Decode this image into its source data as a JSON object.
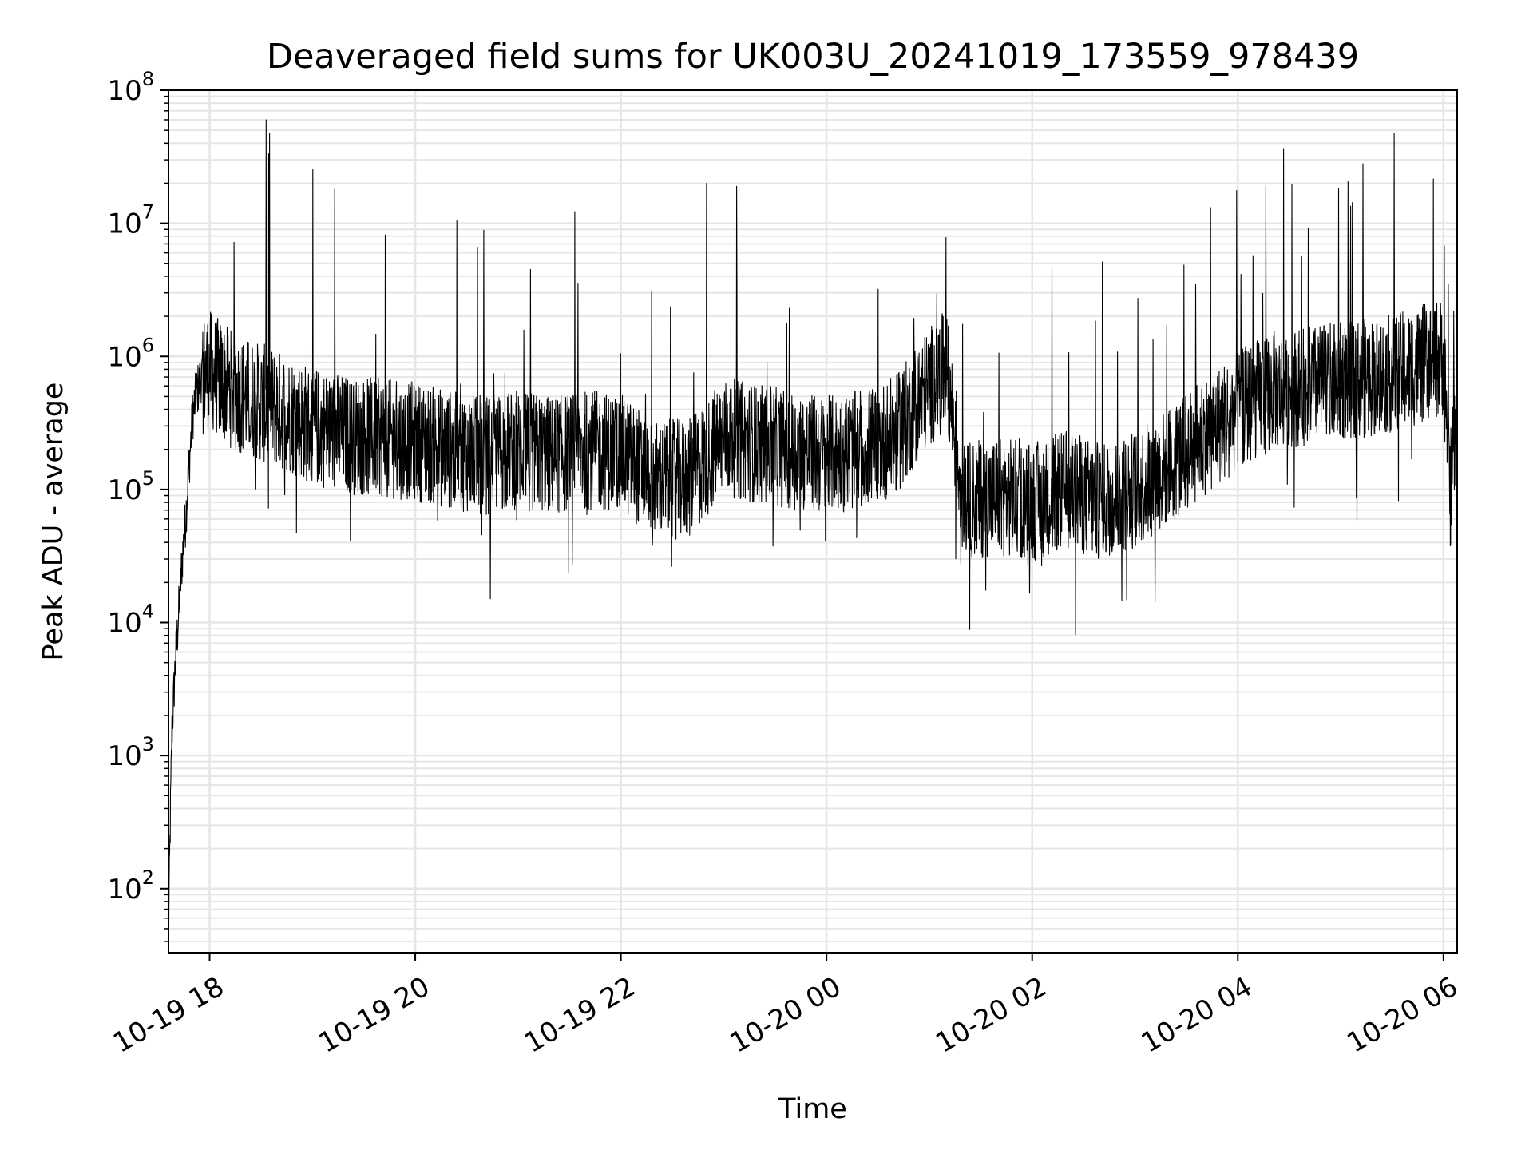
{
  "chart_data": {
    "type": "line",
    "title": "Deaveraged field sums for UK003U_20241019_173559_978439",
    "xlabel": "Time",
    "ylabel": "Peak ADU - average",
    "y_scale": "log",
    "ylim": [
      33,
      100000000
    ],
    "xlim": [
      "2024-10-19T17:36:00",
      "2024-10-20T06:08:00"
    ],
    "grid": true,
    "grid_minor": true,
    "line_color": "#000000",
    "grid_color": "#e6e6e6",
    "x_ticks": [
      {
        "value": "2024-10-19T18:00:00",
        "label": "10-19 18"
      },
      {
        "value": "2024-10-19T20:00:00",
        "label": "10-19 20"
      },
      {
        "value": "2024-10-19T22:00:00",
        "label": "10-19 22"
      },
      {
        "value": "2024-10-20T00:00:00",
        "label": "10-20 00"
      },
      {
        "value": "2024-10-20T02:00:00",
        "label": "10-20 02"
      },
      {
        "value": "2024-10-20T04:00:00",
        "label": "10-20 04"
      },
      {
        "value": "2024-10-20T06:00:00",
        "label": "10-20 06"
      }
    ],
    "y_ticks": [
      {
        "value": 100,
        "base": "10",
        "exp": "2"
      },
      {
        "value": 1000,
        "base": "10",
        "exp": "3"
      },
      {
        "value": 10000,
        "base": "10",
        "exp": "4"
      },
      {
        "value": 100000,
        "base": "10",
        "exp": "5"
      },
      {
        "value": 1000000,
        "base": "10",
        "exp": "6"
      },
      {
        "value": 10000000,
        "base": "10",
        "exp": "7"
      },
      {
        "value": 100000000,
        "base": "10",
        "exp": "8"
      }
    ],
    "series": [
      {
        "x": [
          "2024-10-19T17:36:00",
          "2024-10-19T17:37:00",
          "2024-10-19T17:38:00",
          "2024-10-19T17:40:00",
          "2024-10-19T17:42:00",
          "2024-10-19T17:44:00",
          "2024-10-19T17:46:00",
          "2024-10-19T17:48:00",
          "2024-10-19T17:50:00",
          "2024-10-19T17:52:00",
          "2024-10-19T17:55:00",
          "2024-10-19T18:00:00",
          "2024-10-19T18:10:00",
          "2024-10-19T18:20:00",
          "2024-10-19T18:30:00",
          "2024-10-19T18:33:00",
          "2024-10-19T18:40:00",
          "2024-10-19T18:50:00",
          "2024-10-19T19:00:00",
          "2024-10-19T19:10:00",
          "2024-10-19T19:13:00",
          "2024-10-19T19:20:00",
          "2024-10-19T19:30:00",
          "2024-10-19T19:45:00",
          "2024-10-19T20:00:00",
          "2024-10-19T20:20:00",
          "2024-10-19T20:40:00",
          "2024-10-19T21:00:00",
          "2024-10-19T21:20:00",
          "2024-10-19T21:40:00",
          "2024-10-19T22:00:00",
          "2024-10-19T22:20:00",
          "2024-10-19T22:40:00",
          "2024-10-19T22:50:00",
          "2024-10-19T23:00:00",
          "2024-10-19T23:20:00",
          "2024-10-19T23:40:00",
          "2024-10-20T00:00:00",
          "2024-10-20T00:20:00",
          "2024-10-20T00:40:00",
          "2024-10-20T01:00:00",
          "2024-10-20T01:10:00",
          "2024-10-20T01:20:00",
          "2024-10-20T01:40:00",
          "2024-10-20T02:00:00",
          "2024-10-20T02:20:00",
          "2024-10-20T02:40:00",
          "2024-10-20T03:00:00",
          "2024-10-20T03:20:00",
          "2024-10-20T03:40:00",
          "2024-10-20T04:00:00",
          "2024-10-20T04:20:00",
          "2024-10-20T04:40:00",
          "2024-10-20T05:00:00",
          "2024-10-20T05:13:00",
          "2024-10-20T05:20:00",
          "2024-10-20T05:40:00",
          "2024-10-20T05:50:00",
          "2024-10-20T06:00:00",
          "2024-10-20T06:04:00",
          "2024-10-20T06:08:00"
        ],
        "y": [
          40,
          300,
          1500,
          5000,
          12000,
          30000,
          60000,
          150000,
          350000,
          500000,
          700000,
          800000,
          600000,
          500000,
          450000,
          60000000,
          400000,
          350000,
          300000,
          280000,
          18000000,
          260000,
          250000,
          240000,
          230000,
          200000,
          180000,
          200000,
          180000,
          200000,
          190000,
          120000,
          120000,
          20000000,
          250000,
          220000,
          200000,
          180000,
          200000,
          250000,
          600000,
          800000,
          80000,
          90000,
          80000,
          100000,
          80000,
          100000,
          150000,
          250000,
          400000,
          550000,
          600000,
          650000,
          28000000,
          700000,
          800000,
          900000,
          1000000,
          100000,
          500000
        ]
      }
    ]
  }
}
